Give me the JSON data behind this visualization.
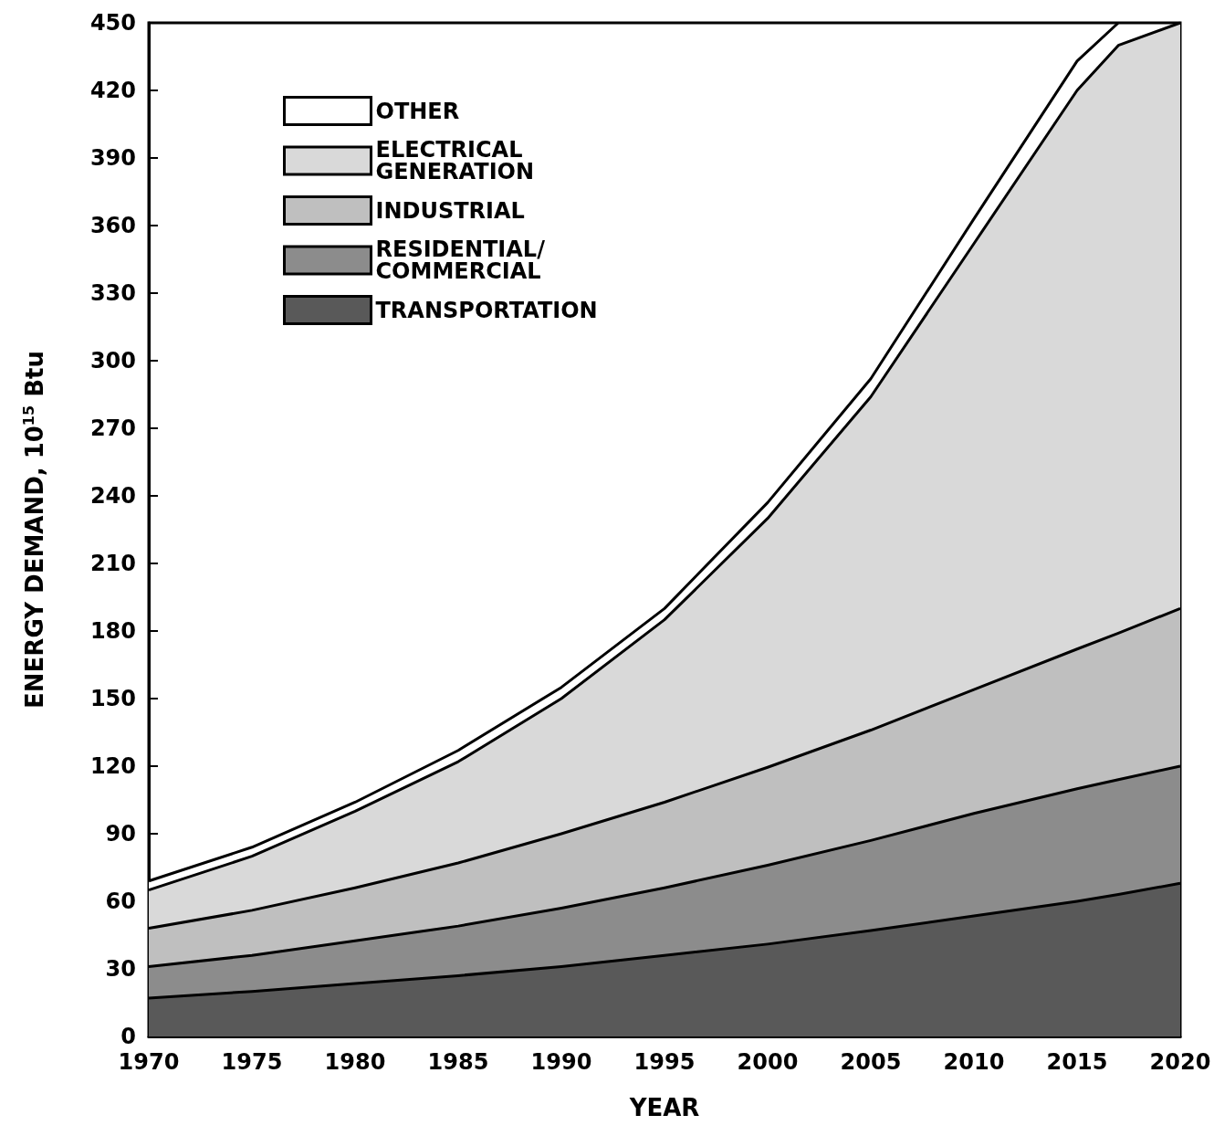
{
  "chart_data": {
    "type": "area",
    "stacked": true,
    "xlabel": "YEAR",
    "ylabel": "ENERGY DEMAND, 10$^{15}$ Btu",
    "x": [
      1970,
      1975,
      1980,
      1985,
      1990,
      1995,
      2000,
      2005,
      2010,
      2015,
      2017,
      2020
    ],
    "xlim": [
      1970,
      2020
    ],
    "xticks": [
      1970,
      1975,
      1980,
      1985,
      1990,
      1995,
      2000,
      2005,
      2010,
      2015,
      2020
    ],
    "ylim": [
      0,
      450
    ],
    "yticks": [
      0,
      30,
      60,
      90,
      120,
      150,
      180,
      210,
      240,
      270,
      300,
      330,
      360,
      390,
      420,
      450
    ],
    "grid": false,
    "legend": "top left",
    "series": [
      {
        "name": "TRANSPORTATION",
        "color": "#595959",
        "values": [
          17,
          20,
          23.5,
          27,
          31,
          36,
          41,
          47,
          53.5,
          60,
          63,
          68
        ]
      },
      {
        "name": "RESIDENTIAL/ COMMERCIAL",
        "color": "#8c8c8c",
        "values": [
          14,
          16,
          19,
          22,
          26,
          30,
          35,
          40,
          45.5,
          50,
          51,
          52
        ]
      },
      {
        "name": "INDUSTRIAL",
        "color": "#bfbfbf",
        "values": [
          17,
          20,
          23.5,
          28,
          33,
          38,
          43.5,
          49,
          55,
          62,
          65,
          70
        ]
      },
      {
        "name": "ELECTRICAL GENERATION",
        "color": "#d9d9d9",
        "values": [
          17,
          24,
          34,
          45,
          60,
          81,
          110.5,
          148,
          198,
          248,
          261,
          260
        ]
      },
      {
        "name": "OTHER",
        "color": "#ffffff",
        "values": [
          4,
          4,
          4,
          5,
          5,
          5,
          7,
          8,
          11,
          13,
          10,
          null
        ]
      }
    ]
  }
}
